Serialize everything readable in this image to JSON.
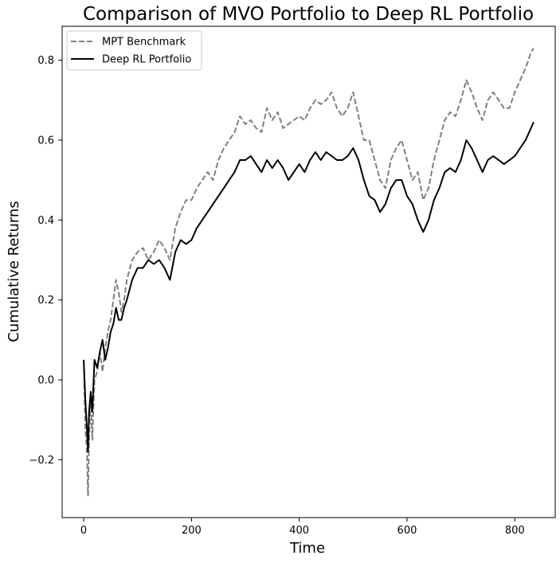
{
  "chart_data": {
    "type": "line",
    "title": "Comparison of MVO Portfolio to Deep RL Portfolio",
    "xlabel": "Time",
    "ylabel": "Cumulative Returns",
    "xlim": [
      -40,
      875
    ],
    "ylim": [
      -0.345,
      0.885
    ],
    "xticks": [
      0,
      200,
      400,
      600,
      800
    ],
    "xtick_labels": [
      "0",
      "200",
      "400",
      "600",
      "800"
    ],
    "yticks": [
      -0.2,
      0.0,
      0.2,
      0.4,
      0.6,
      0.8
    ],
    "ytick_labels": [
      "−0.2",
      "0.0",
      "0.2",
      "0.4",
      "0.6",
      "0.8"
    ],
    "grid": false,
    "legend_position": "top-left",
    "series": [
      {
        "name": "MPT Benchmark",
        "color": "#808080",
        "dash": "dashed",
        "x": [
          0,
          3,
          6,
          8,
          10,
          13,
          16,
          20,
          25,
          30,
          35,
          40,
          45,
          50,
          55,
          60,
          65,
          70,
          75,
          80,
          90,
          100,
          110,
          120,
          130,
          140,
          150,
          160,
          170,
          180,
          190,
          200,
          210,
          220,
          230,
          240,
          250,
          260,
          270,
          280,
          290,
          300,
          310,
          320,
          330,
          340,
          350,
          360,
          370,
          380,
          390,
          400,
          410,
          420,
          430,
          440,
          450,
          460,
          470,
          480,
          490,
          500,
          510,
          520,
          530,
          540,
          550,
          560,
          570,
          580,
          590,
          600,
          610,
          620,
          630,
          640,
          650,
          660,
          670,
          680,
          690,
          700,
          710,
          720,
          730,
          740,
          750,
          760,
          770,
          780,
          790,
          800,
          810,
          820,
          830,
          835
        ],
        "y": [
          0.05,
          -0.12,
          -0.18,
          -0.29,
          -0.15,
          -0.05,
          -0.15,
          0.0,
          0.02,
          0.07,
          0.02,
          0.08,
          0.12,
          0.15,
          0.2,
          0.25,
          0.22,
          0.17,
          0.2,
          0.25,
          0.3,
          0.32,
          0.33,
          0.3,
          0.32,
          0.35,
          0.33,
          0.3,
          0.38,
          0.42,
          0.45,
          0.45,
          0.48,
          0.5,
          0.52,
          0.5,
          0.55,
          0.58,
          0.6,
          0.62,
          0.66,
          0.64,
          0.65,
          0.63,
          0.62,
          0.68,
          0.65,
          0.67,
          0.63,
          0.64,
          0.65,
          0.66,
          0.65,
          0.68,
          0.7,
          0.69,
          0.7,
          0.72,
          0.68,
          0.66,
          0.68,
          0.72,
          0.66,
          0.6,
          0.6,
          0.55,
          0.5,
          0.48,
          0.55,
          0.58,
          0.6,
          0.55,
          0.5,
          0.52,
          0.45,
          0.48,
          0.55,
          0.6,
          0.65,
          0.67,
          0.66,
          0.7,
          0.75,
          0.72,
          0.68,
          0.65,
          0.7,
          0.72,
          0.7,
          0.68,
          0.68,
          0.72,
          0.75,
          0.78,
          0.82,
          0.83
        ]
      },
      {
        "name": "Deep RL Portfolio",
        "color": "#000000",
        "dash": "solid",
        "x": [
          0,
          3,
          6,
          8,
          10,
          13,
          16,
          20,
          25,
          30,
          35,
          40,
          45,
          50,
          55,
          60,
          65,
          70,
          75,
          80,
          90,
          100,
          110,
          120,
          130,
          140,
          150,
          160,
          170,
          180,
          190,
          200,
          210,
          220,
          230,
          240,
          250,
          260,
          270,
          280,
          290,
          300,
          310,
          320,
          330,
          340,
          350,
          360,
          370,
          380,
          390,
          400,
          410,
          420,
          430,
          440,
          450,
          460,
          470,
          480,
          490,
          500,
          510,
          520,
          530,
          540,
          550,
          560,
          570,
          580,
          590,
          600,
          610,
          620,
          630,
          640,
          650,
          660,
          670,
          680,
          690,
          700,
          710,
          720,
          730,
          740,
          750,
          760,
          770,
          780,
          790,
          800,
          810,
          820,
          830,
          835
        ],
        "y": [
          0.05,
          -0.05,
          -0.12,
          -0.18,
          -0.08,
          -0.03,
          -0.08,
          0.05,
          0.03,
          0.07,
          0.1,
          0.05,
          0.08,
          0.12,
          0.14,
          0.18,
          0.15,
          0.15,
          0.18,
          0.2,
          0.25,
          0.28,
          0.28,
          0.3,
          0.29,
          0.3,
          0.28,
          0.25,
          0.32,
          0.35,
          0.34,
          0.35,
          0.38,
          0.4,
          0.42,
          0.44,
          0.46,
          0.48,
          0.5,
          0.52,
          0.55,
          0.55,
          0.56,
          0.54,
          0.52,
          0.55,
          0.53,
          0.55,
          0.53,
          0.5,
          0.52,
          0.54,
          0.52,
          0.55,
          0.57,
          0.55,
          0.57,
          0.56,
          0.55,
          0.55,
          0.56,
          0.58,
          0.55,
          0.5,
          0.46,
          0.45,
          0.42,
          0.44,
          0.48,
          0.5,
          0.5,
          0.46,
          0.44,
          0.4,
          0.37,
          0.4,
          0.45,
          0.48,
          0.52,
          0.53,
          0.52,
          0.55,
          0.6,
          0.58,
          0.55,
          0.52,
          0.55,
          0.56,
          0.55,
          0.54,
          0.55,
          0.56,
          0.58,
          0.6,
          0.63,
          0.645
        ]
      }
    ]
  }
}
